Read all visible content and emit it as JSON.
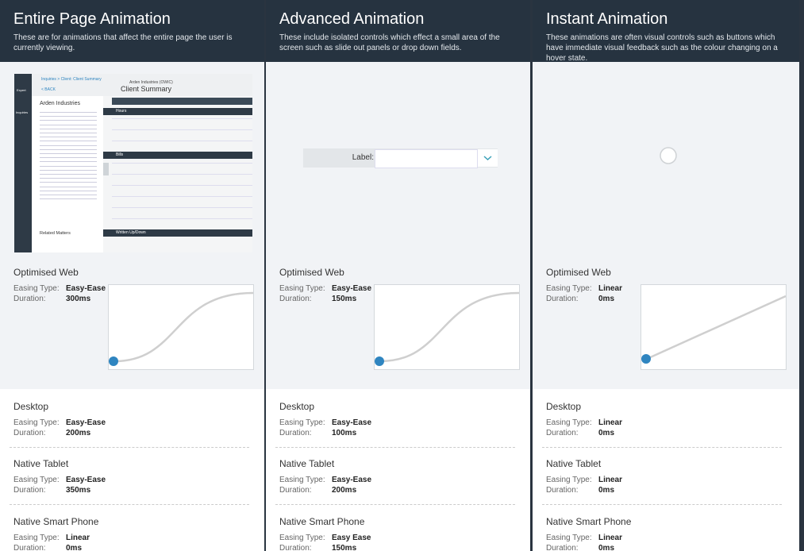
{
  "labels": {
    "easing": "Easing Type:",
    "duration": "Duration:"
  },
  "columns": [
    {
      "title": "Entire Page Animation",
      "description": "These are for animations that affect the entire page the user is currently viewing.",
      "curve": "ease",
      "platforms": [
        {
          "name": "Optimised Web",
          "easing": "Easy-Ease",
          "duration": "300ms"
        },
        {
          "name": "Desktop",
          "easing": "Easy-Ease",
          "duration": "200ms"
        },
        {
          "name": "Native Tablet",
          "easing": "Easy-Ease",
          "duration": "350ms"
        },
        {
          "name": "Native Smart Phone",
          "easing": "Linear",
          "duration": "0ms"
        }
      ]
    },
    {
      "title": "Advanced Animation",
      "description": "These include isolated controls which effect a small area of the screen such as slide out panels or drop down fields.",
      "curve": "ease",
      "platforms": [
        {
          "name": "Optimised Web",
          "easing": "Easy-Ease",
          "duration": "150ms"
        },
        {
          "name": "Desktop",
          "easing": "Easy-Ease",
          "duration": "100ms"
        },
        {
          "name": "Native Tablet",
          "easing": "Easy-Ease",
          "duration": "200ms"
        },
        {
          "name": "Native Smart Phone",
          "easing": "Easy Ease",
          "duration": "150ms"
        }
      ]
    },
    {
      "title": "Instant Animation",
      "description": "These animations are often visual controls such as buttons which have immediate visual feedback such as the colour changing on a hover state.",
      "curve": "linear",
      "platforms": [
        {
          "name": "Optimised Web",
          "easing": "Linear",
          "duration": "0ms"
        },
        {
          "name": "Desktop",
          "easing": "Linear",
          "duration": "0ms"
        },
        {
          "name": "Native Tablet",
          "easing": "Linear",
          "duration": "0ms"
        },
        {
          "name": "Native Smart Phone",
          "easing": "Linear",
          "duration": "0ms"
        }
      ]
    }
  ],
  "previews": {
    "client_summary": {
      "nav": [
        "Expert",
        "Inquiries"
      ],
      "breadcrumb": "Inquiries > Client: Client Summary",
      "back": "< BACK",
      "subtitle": "Arden Industries (OWIC)",
      "title": "Client Summary",
      "client": "Arden Industries",
      "related": "Related Matters",
      "sections": [
        "Hours",
        "Bills",
        "Written Up/Down"
      ]
    },
    "field_label": "Label:"
  }
}
